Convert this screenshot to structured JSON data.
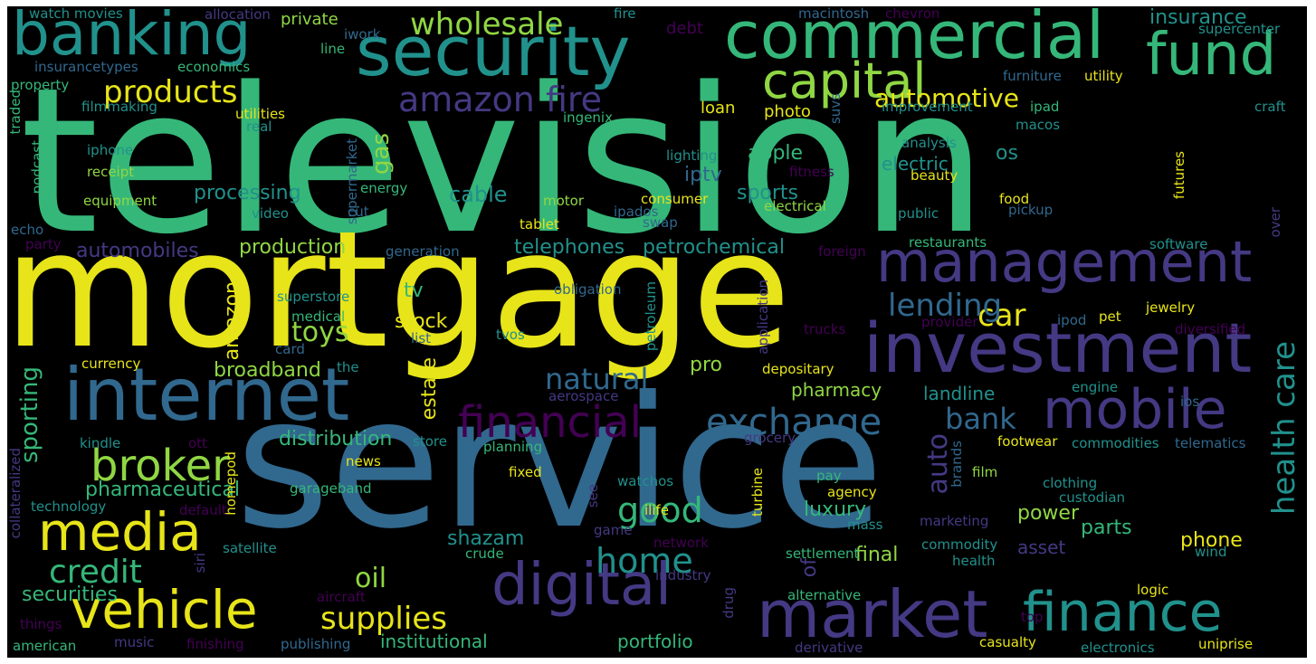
{
  "palette": {
    "background": "#000000",
    "yellow": "#e7e419",
    "lime": "#90d743",
    "green": "#35b779",
    "teal": "#21918c",
    "blue": "#31688e",
    "indigo": "#443983",
    "purple": "#440154"
  },
  "words": [
    "television",
    "mortgage",
    "service",
    "security",
    "commercial",
    "banking",
    "fund",
    "capital",
    "amazon fire",
    "products",
    "wholesale",
    "management",
    "investment",
    "internet",
    "mobile",
    "financial",
    "exchange",
    "digital",
    "market",
    "finance",
    "media",
    "vehicle",
    "broker",
    "credit",
    "home",
    "good",
    "supplies",
    "oil",
    "car",
    "lending",
    "health care",
    "toys",
    "cable",
    "gas",
    "automotive",
    "insurance",
    "processing",
    "production",
    "telephones",
    "petrochemical",
    "sports",
    "apple",
    "iptv",
    "electric",
    "natural",
    "bank",
    "auto",
    "broadband",
    "pharmacy",
    "stock",
    "tv",
    "pro",
    "estate",
    "sporting",
    "pharmaceutical",
    "securities",
    "distribution",
    "shazam",
    "luxury",
    "power",
    "parts",
    "phone",
    "asset",
    "final",
    "of",
    "landline",
    "portfolio",
    "institutional",
    "automobiles",
    "amazon",
    "os",
    "loan",
    "private",
    "debt",
    "watch movies",
    "allocation",
    "fire",
    "macintosh",
    "chevron",
    "supercenter",
    "insurancetypes",
    "economics",
    "line",
    "iwork",
    "furniture",
    "utility",
    "property",
    "filmmaking",
    "utilities",
    "ingenix",
    "improvement",
    "ipad",
    "craft",
    "macos",
    "photo",
    "suvs",
    "traded",
    "podcast",
    "iphone",
    "real",
    "receipt",
    "supermarket",
    "lighting",
    "fitness",
    "analysis",
    "energy",
    "beauty",
    "equipment",
    "motor",
    "consumer",
    "food",
    "cut",
    "video",
    "electrical",
    "pickup",
    "public",
    "futures",
    "echo",
    "party",
    "generation",
    "tablet",
    "swap",
    "ipados",
    "restaurants",
    "software",
    "foreign",
    "superstore",
    "obligation",
    "medical",
    "petroleum",
    "application",
    "card",
    "list",
    "tvos",
    "trucks",
    "provider",
    "ipod",
    "pet",
    "jewelry",
    "diversified",
    "currency",
    "the",
    "depositary",
    "aerospace",
    "engine",
    "ios",
    "collateralized",
    "kindle",
    "ott",
    "homepod",
    "store",
    "planning",
    "grocery",
    "footwear",
    "commodities",
    "telematics",
    "technology",
    "default",
    "news",
    "fixed",
    "turbine",
    "pay",
    "brands",
    "film",
    "clothing",
    "custodian",
    "agency",
    "watchos",
    "garageband",
    "see",
    "ilife",
    "mass",
    "game",
    "network",
    "marketing",
    "satellite",
    "crude",
    "settlement",
    "commodity",
    "wind",
    "siri",
    "industry",
    "health",
    "aircraft",
    "drug",
    "alternative",
    "logic",
    "things",
    "american",
    "music",
    "finishing",
    "publishing",
    "derivative",
    "casualty",
    "top",
    "electronics",
    "uniprise",
    "over"
  ]
}
